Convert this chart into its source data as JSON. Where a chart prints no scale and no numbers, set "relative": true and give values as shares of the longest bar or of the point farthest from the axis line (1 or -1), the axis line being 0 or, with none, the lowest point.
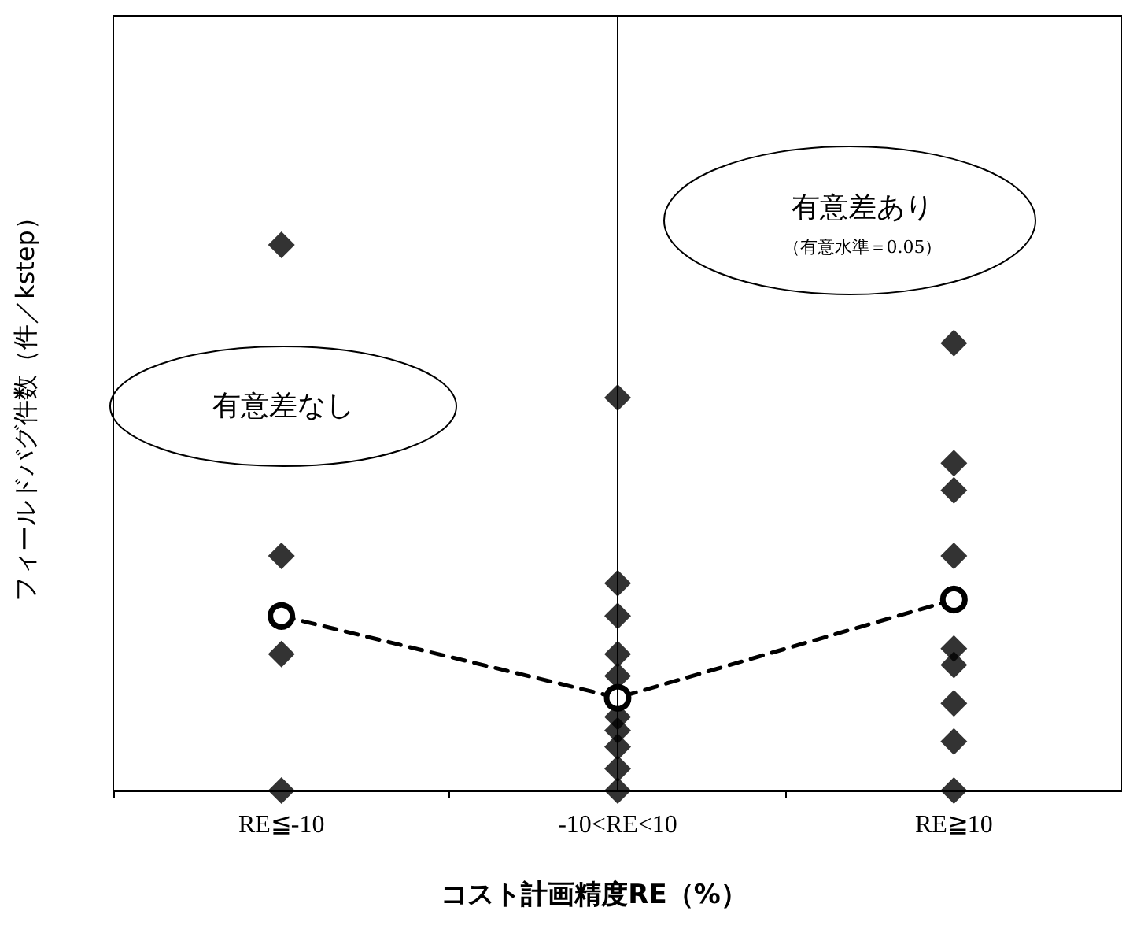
{
  "chart_data": {
    "type": "scatter",
    "relative": true,
    "xlabel": "コスト計画精度RE（%）",
    "ylabel": "フィールドバグ件数（件／kstep）",
    "categories": [
      "RE≦-10",
      "-10<RE<10",
      "RE≧10"
    ],
    "series": [
      {
        "marker": "diamond",
        "color": "#000000",
        "x": [
          "RE≦-10",
          "RE≦-10",
          "RE≦-10",
          "RE≦-10",
          "-10<RE<10",
          "-10<RE<10",
          "-10<RE<10",
          "-10<RE<10",
          "-10<RE<10",
          "-10<RE<10",
          "-10<RE<10",
          "-10<RE<10",
          "-10<RE<10",
          "-10<RE<10",
          "RE≧10",
          "RE≧10",
          "RE≧10",
          "RE≧10",
          "RE≧10",
          "RE≧10",
          "RE≧10",
          "RE≧10",
          "RE≧10"
        ],
        "values": [
          1,
          0.43,
          0.25,
          0,
          0.72,
          0.38,
          0.32,
          0.25,
          0.21,
          0.135,
          0.11,
          0.08,
          0.04,
          0,
          0.82,
          0.6,
          0.55,
          0.43,
          0.26,
          0.23,
          0.16,
          0.09,
          0
        ]
      },
      {
        "type": "line",
        "marker": "circle",
        "line_style": "dashed",
        "color": "#000000",
        "values": [
          0.32,
          0.17,
          0.35
        ]
      }
    ],
    "annotations": [
      "有意差なし",
      "有意差あり",
      "（有意水準＝0.05）"
    ],
    "ref_lines": [
      {
        "axis": "x",
        "value": "-10<RE<10",
        "color": "#000000",
        "line_style": "solid"
      }
    ],
    "grid": false
  }
}
